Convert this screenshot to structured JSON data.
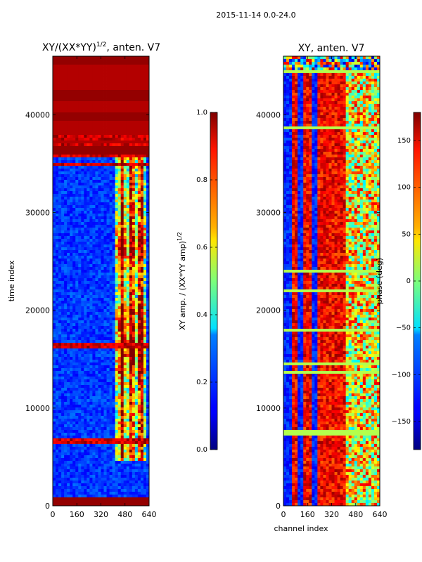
{
  "suptitle": "2015-11-14 0.0-24.0",
  "chart_data": [
    {
      "type": "heatmap",
      "title": "XY/(XX*YY)^1/2, anten. V7",
      "title_main": "XY/(XX*YY)",
      "title_exp": "1/2",
      "title_tail": ", anten. V7",
      "xlabel": "",
      "ylabel": "time index",
      "xlim": [
        0,
        640
      ],
      "ylim": [
        0,
        46000
      ],
      "xticks": [
        0,
        160,
        320,
        480,
        640
      ],
      "yticks": [
        0,
        10000,
        20000,
        30000,
        40000
      ],
      "colormap": "jet",
      "colorbar": {
        "label": "XY amp. / (XX*YY amp)^1/2",
        "label_main": "XY amp. / (XX*YY amp)",
        "label_exp": "1/2",
        "range": [
          0.0,
          1.0
        ],
        "ticks": [
          "0.0",
          "0.2",
          "0.4",
          "0.6",
          "0.8",
          "1.0"
        ]
      }
    },
    {
      "type": "heatmap",
      "title": "XY, anten. V7",
      "xlabel": "channel index",
      "ylabel": "",
      "xlim": [
        0,
        640
      ],
      "ylim": [
        0,
        46000
      ],
      "xticks": [
        0,
        160,
        320,
        480,
        640
      ],
      "yticks": [
        0,
        10000,
        20000,
        30000,
        40000
      ],
      "colormap": "jet",
      "colorbar": {
        "label": "phase (deg)",
        "range": [
          -180,
          180
        ],
        "ticks": [
          "−150",
          "−100",
          "−50",
          "0",
          "50",
          "100",
          "150"
        ]
      }
    }
  ]
}
